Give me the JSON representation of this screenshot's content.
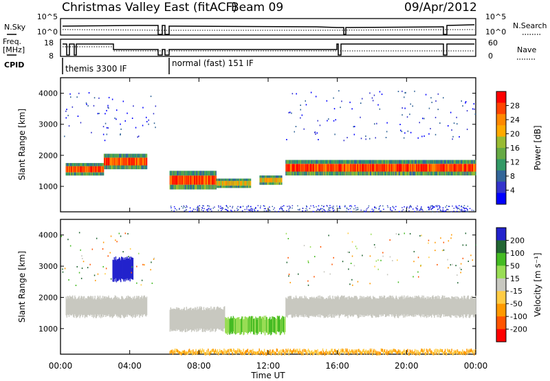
{
  "header": {
    "station": "Christmas Valley East (fitACF)",
    "beam": "Beam 09",
    "date": "09/Apr/2012"
  },
  "strips": {
    "nsky_label": "N.Sky",
    "nsky_ticks": [
      "10^5",
      "10^0"
    ],
    "nsearch_label": "N.Search",
    "nsearch_ticks": [
      "10^5",
      "10^0"
    ],
    "freq_label_line1": "Freq.",
    "freq_label_line2": "[MHz]",
    "freq_ticks": [
      "18",
      "8"
    ],
    "nave_label": "Nave",
    "nave_ticks": [
      "60",
      "0"
    ],
    "cpid_label": "CPID",
    "cpid_modes": [
      "themis 3300 IF",
      "normal (fast) 151 IF"
    ]
  },
  "colorbars": {
    "power_label": "Power [dB]",
    "power_ticks": [
      "28",
      "24",
      "20",
      "16",
      "12",
      "8",
      "4"
    ],
    "power_colors": [
      "#ff0000",
      "#ff4400",
      "#ff8800",
      "#ffaa00",
      "#99bb33",
      "#66aa44",
      "#339966",
      "#336699",
      "#3333cc",
      "#0000ff"
    ],
    "velocity_label": "Velocity [m s⁻¹]",
    "velocity_ticks": [
      "200",
      "100",
      "50",
      "15",
      "-15",
      "-50",
      "-100",
      "-200"
    ],
    "velocity_colors": [
      "#2222cc",
      "#226633",
      "#44bb22",
      "#99dd55",
      "#c8c8c0",
      "#ffcc44",
      "#ff9900",
      "#ff5500",
      "#ff0000"
    ]
  },
  "chart_data": [
    {
      "type": "heatmap",
      "title": "Power",
      "ylabel": "Slant Range [km]",
      "xlabel": "Time UT",
      "x_ticks": [
        "00:00",
        "04:00",
        "08:00",
        "12:00",
        "16:00",
        "20:00",
        "00:00"
      ],
      "y_ticks": [
        "1000",
        "2000",
        "3000",
        "4000"
      ],
      "ylim": [
        180,
        4500
      ],
      "xlim_hours": [
        0,
        24
      ],
      "bands": [
        {
          "t_start": 0.3,
          "t_end": 2.5,
          "range_center": 1550,
          "range_width": 400,
          "level": "high"
        },
        {
          "t_start": 2.5,
          "t_end": 5.0,
          "range_center": 1800,
          "range_width": 500,
          "level": "high"
        },
        {
          "t_start": 6.3,
          "t_end": 9.0,
          "range_center": 1200,
          "range_width": 600,
          "level": "high"
        },
        {
          "t_start": 9.0,
          "t_end": 11.0,
          "range_center": 1100,
          "range_width": 300,
          "level": "medium"
        },
        {
          "t_start": 11.5,
          "t_end": 12.8,
          "range_center": 1200,
          "range_width": 300,
          "level": "medium"
        },
        {
          "t_start": 13.0,
          "t_end": 24.0,
          "range_center": 1600,
          "range_width": 500,
          "level": "high"
        }
      ]
    },
    {
      "type": "heatmap",
      "title": "Velocity",
      "ylabel": "Slant Range [km]",
      "xlabel": "Time UT",
      "x_ticks": [
        "00:00",
        "04:00",
        "08:00",
        "12:00",
        "16:00",
        "20:00",
        "00:00"
      ],
      "y_ticks": [
        "1000",
        "2000",
        "3000",
        "4000"
      ],
      "ylim": [
        180,
        4500
      ],
      "xlim_hours": [
        0,
        24
      ],
      "bands": [
        {
          "t_start": 0.3,
          "t_end": 5.0,
          "range_center": 1700,
          "range_width": 600,
          "velocity": 0
        },
        {
          "t_start": 3.0,
          "t_end": 4.2,
          "range_center": 2900,
          "range_width": 700,
          "velocity": 200
        },
        {
          "t_start": 6.3,
          "t_end": 9.5,
          "range_center": 1300,
          "range_width": 700,
          "velocity": 0
        },
        {
          "t_start": 9.5,
          "t_end": 13.0,
          "range_center": 1100,
          "range_width": 500,
          "velocity": 30
        },
        {
          "t_start": 13.0,
          "t_end": 24.0,
          "range_center": 1700,
          "range_width": 600,
          "velocity": 0
        },
        {
          "t_start": 6.3,
          "t_end": 24.0,
          "range_center": 250,
          "range_width": 100,
          "velocity": -50
        }
      ]
    }
  ]
}
